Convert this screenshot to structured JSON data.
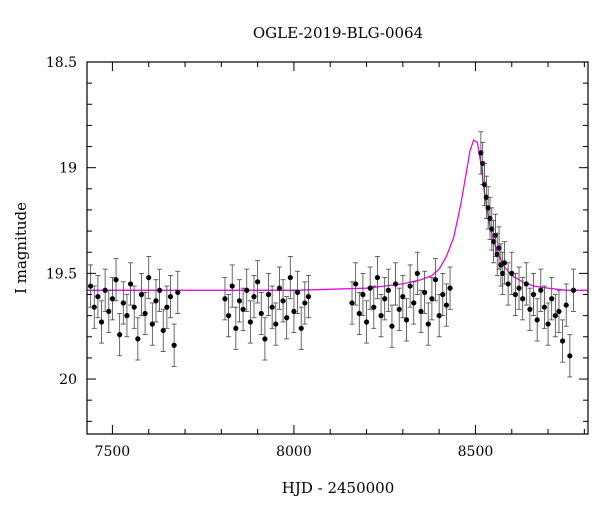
{
  "chart_data": {
    "type": "scatter",
    "title": "OGLE-2019-BLG-0064",
    "xlabel": "HJD - 2450000",
    "ylabel": "I magnitude",
    "xlim": [
      7430,
      8810
    ],
    "ylim": [
      20.26,
      18.5
    ],
    "y_inverted": true,
    "x_ticks": [
      7500,
      8000,
      8500
    ],
    "x_tick_labels": [
      "7500",
      "8000",
      "8500"
    ],
    "y_ticks": [
      18.5,
      19,
      19.5,
      20
    ],
    "y_tick_labels": [
      "18.5",
      "19",
      "19.5",
      "20"
    ],
    "grid": false,
    "legend": "none",
    "colors": {
      "points": "#000000",
      "model": "#e010e0"
    },
    "series": [
      {
        "kind": "points_with_errorbars",
        "error": 0.1,
        "x": [
          7440,
          7450,
          7460,
          7470,
          7480,
          7490,
          7500,
          7510,
          7520,
          7530,
          7540,
          7550,
          7560,
          7570,
          7580,
          7590,
          7600,
          7610,
          7620,
          7630,
          7640,
          7650,
          7660,
          7670,
          7680,
          7810,
          7820,
          7830,
          7840,
          7850,
          7860,
          7870,
          7880,
          7890,
          7900,
          7910,
          7920,
          7930,
          7940,
          7950,
          7960,
          7970,
          7980,
          7990,
          8000,
          8010,
          8020,
          8030,
          8040,
          8160,
          8170,
          8180,
          8190,
          8200,
          8210,
          8220,
          8230,
          8240,
          8250,
          8260,
          8270,
          8280,
          8290,
          8300,
          8310,
          8320,
          8330,
          8340,
          8350,
          8360,
          8370,
          8380,
          8390,
          8400,
          8410,
          8420,
          8430,
          8515,
          8520,
          8525,
          8530,
          8535,
          8540,
          8545,
          8550,
          8555,
          8560,
          8565,
          8570,
          8575,
          8580,
          8590,
          8600,
          8610,
          8620,
          8630,
          8640,
          8650,
          8660,
          8670,
          8680,
          8690,
          8700,
          8710,
          8720,
          8730,
          8740,
          8750,
          8760,
          8770
        ],
        "y": [
          19.56,
          19.66,
          19.61,
          19.73,
          19.58,
          19.68,
          19.62,
          19.53,
          19.79,
          19.64,
          19.7,
          19.55,
          19.66,
          19.81,
          19.6,
          19.69,
          19.52,
          19.74,
          19.63,
          19.58,
          19.77,
          19.66,
          19.61,
          19.84,
          19.59,
          19.62,
          19.7,
          19.56,
          19.76,
          19.63,
          19.67,
          19.58,
          19.73,
          19.61,
          19.54,
          19.69,
          19.81,
          19.6,
          19.66,
          19.74,
          19.57,
          19.63,
          19.71,
          19.52,
          19.68,
          19.59,
          19.76,
          19.64,
          19.61,
          19.64,
          19.55,
          19.69,
          19.6,
          19.73,
          19.57,
          19.66,
          19.52,
          19.7,
          19.62,
          19.58,
          19.75,
          19.55,
          19.67,
          19.61,
          19.72,
          19.56,
          19.64,
          19.5,
          19.68,
          19.59,
          19.74,
          19.62,
          19.53,
          19.7,
          19.6,
          19.65,
          19.57,
          18.93,
          18.98,
          19.08,
          19.14,
          19.19,
          19.24,
          19.29,
          19.35,
          19.32,
          19.41,
          19.38,
          19.46,
          19.5,
          19.45,
          19.55,
          19.5,
          19.6,
          19.57,
          19.62,
          19.55,
          19.67,
          19.6,
          19.72,
          19.58,
          19.66,
          19.74,
          19.62,
          19.7,
          19.68,
          19.82,
          19.65,
          19.89,
          19.58
        ]
      },
      {
        "kind": "model_line",
        "x": [
          7430,
          7600,
          7800,
          8000,
          8200,
          8300,
          8350,
          8380,
          8400,
          8420,
          8440,
          8460,
          8475,
          8485,
          8495,
          8505,
          8515,
          8525,
          8540,
          8560,
          8580,
          8600,
          8630,
          8660,
          8700,
          8750,
          8810
        ],
        "y": [
          19.58,
          19.58,
          19.58,
          19.58,
          19.57,
          19.55,
          19.53,
          19.51,
          19.48,
          19.42,
          19.33,
          19.17,
          19.02,
          18.92,
          18.87,
          18.88,
          18.98,
          19.12,
          19.28,
          19.4,
          19.47,
          19.51,
          19.54,
          19.56,
          19.57,
          19.58,
          19.58
        ]
      }
    ]
  }
}
